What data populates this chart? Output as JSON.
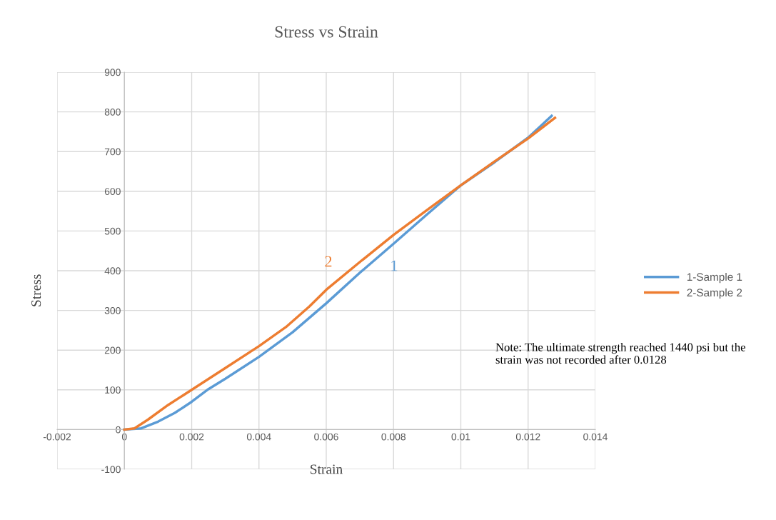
{
  "chart_data": {
    "type": "line",
    "title": "Stress vs Strain",
    "xlabel": "Strain",
    "ylabel": "Stress",
    "xlim": [
      -0.002,
      0.014
    ],
    "xticks": [
      -0.002,
      0,
      0.002,
      0.004,
      0.006,
      0.008,
      0.01,
      0.012,
      0.014
    ],
    "ylim": [
      -100,
      900
    ],
    "yticks": [
      -100,
      0,
      100,
      200,
      300,
      400,
      500,
      600,
      700,
      800,
      900
    ],
    "grid": true,
    "legend": "right",
    "marker": "none",
    "line_style": "solid",
    "series": [
      {
        "name": "1-Sample 1",
        "color": "#5b9bd5",
        "x": [
          0,
          0.0005,
          0.001,
          0.0015,
          0.002,
          0.0025,
          0.003,
          0.004,
          0.005,
          0.006,
          0.007,
          0.008,
          0.009,
          0.01,
          0.011,
          0.012,
          0.0127
        ],
        "values": [
          0,
          3,
          20,
          42,
          70,
          102,
          128,
          183,
          245,
          318,
          395,
          468,
          542,
          615,
          673,
          735,
          790
        ]
      },
      {
        "name": "2-Sample 2",
        "color": "#ed7d31",
        "x": [
          0,
          0.0003,
          0.0007,
          0.0013,
          0.002,
          0.003,
          0.004,
          0.0048,
          0.0055,
          0.006,
          0.007,
          0.008,
          0.009,
          0.01,
          0.011,
          0.012,
          0.0128
        ],
        "values": [
          0,
          3,
          25,
          62,
          100,
          155,
          210,
          258,
          310,
          352,
          422,
          490,
          553,
          615,
          675,
          733,
          785
        ]
      }
    ],
    "annotations": [
      "2",
      "1",
      "Note: The ultimate strength reached 1440 psi but the strain was not recorded after 0.0128"
    ]
  }
}
